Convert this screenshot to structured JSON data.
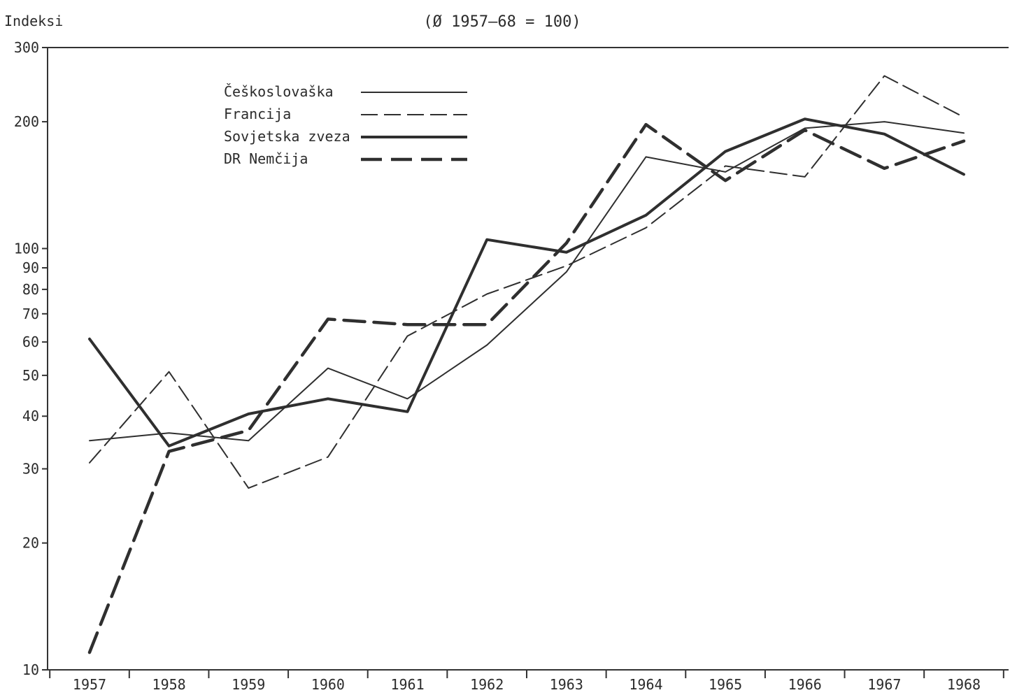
{
  "chart_data": {
    "type": "line",
    "subtitle": "(Ø 1957–68 = 100)",
    "ylabel": "Indeksi",
    "xlabel": "",
    "y_scale": "log",
    "ylim": [
      10,
      300
    ],
    "yticks": [
      10,
      20,
      30,
      40,
      50,
      60,
      70,
      80,
      90,
      100,
      200,
      300
    ],
    "ytick_labels": [
      "10",
      "20",
      "30",
      "40",
      "50",
      "60",
      "70",
      "80",
      "90",
      "100",
      "200",
      "300"
    ],
    "categories": [
      "1957",
      "1958",
      "1959",
      "1960",
      "1961",
      "1962",
      "1963",
      "1964",
      "1965",
      "1966",
      "1967",
      "1968"
    ],
    "legend_position": "top-left",
    "grid": false,
    "series": [
      {
        "name": "Češkoslovaška",
        "style": "thin-solid",
        "color": "#2f2f2f",
        "values": [
          35,
          36.5,
          35,
          52,
          44,
          59,
          88,
          165,
          152,
          193,
          200,
          188
        ]
      },
      {
        "name": "Francija",
        "style": "thin-dashed",
        "color": "#2f2f2f",
        "values": [
          31,
          51,
          27,
          32,
          62,
          78,
          91,
          112,
          157,
          148,
          257,
          205
        ]
      },
      {
        "name": "Sovjetska zveza",
        "style": "thick-solid",
        "color": "#2f2f2f",
        "values": [
          61,
          34,
          40.5,
          44,
          41,
          105,
          98,
          120,
          170,
          203,
          187,
          150
        ]
      },
      {
        "name": "DR Nemčija",
        "style": "thick-dashed",
        "color": "#2f2f2f",
        "values": [
          11,
          33,
          37,
          68,
          66,
          66,
          103,
          197,
          145,
          191,
          155,
          180
        ]
      }
    ]
  }
}
